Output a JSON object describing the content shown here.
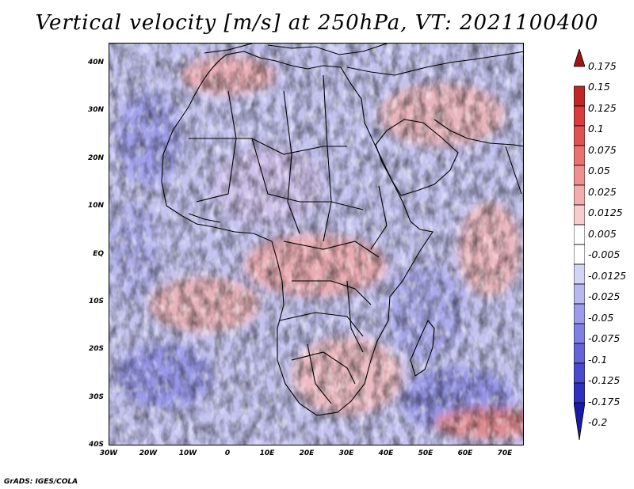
{
  "title": "Vertical velocity [m/s] at 250hPa, VT: 2021100400",
  "credit": "GrADS: IGES/COLA",
  "map": {
    "lon_range": [
      -30,
      75
    ],
    "lat_range": [
      -40,
      45
    ],
    "lat_ticks": [
      "40N",
      "30N",
      "20N",
      "10N",
      "EQ",
      "10S",
      "20S",
      "30S",
      "40S"
    ],
    "lon_ticks": [
      "30W",
      "20W",
      "10W",
      "0",
      "10E",
      "20E",
      "30E",
      "40E",
      "50E",
      "60E",
      "70E"
    ]
  },
  "colorbar": {
    "labels": [
      "0.175",
      "0.15",
      "0.125",
      "0.1",
      "0.075",
      "0.05",
      "0.025",
      "0.0125",
      "0.005",
      "-0.005",
      "-0.0125",
      "-0.025",
      "-0.05",
      "-0.075",
      "-0.1",
      "-0.125",
      "-0.175",
      "-0.2"
    ],
    "colors": [
      "#a01414",
      "#c02626",
      "#d83c3c",
      "#e05252",
      "#e87272",
      "#ee9090",
      "#f2aeae",
      "#f6cccc",
      "#ffffff",
      "#ffffff",
      "#d4d4f6",
      "#b8b8f0",
      "#9c9cea",
      "#8080e2",
      "#6464d8",
      "#4a4ace",
      "#3030c0",
      "#1a1aa8"
    ]
  }
}
